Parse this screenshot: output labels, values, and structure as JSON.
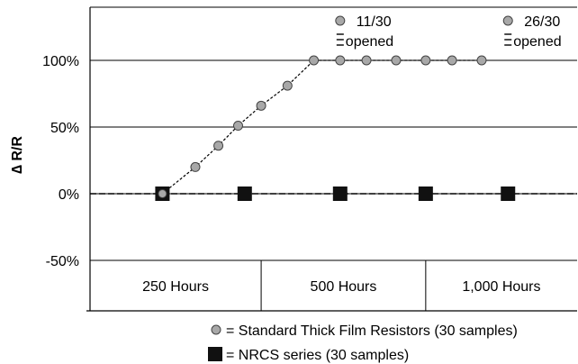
{
  "chart_data": {
    "type": "line",
    "ylabel": "∆ R/R",
    "ylim": [
      -85,
      140
    ],
    "y_ticks": [
      {
        "value": 100,
        "label": "100%"
      },
      {
        "value": 50,
        "label": "50%"
      },
      {
        "value": 0,
        "label": "0%"
      },
      {
        "value": -50,
        "label": "-50%"
      }
    ],
    "x_bands": [
      {
        "label": "250 Hours",
        "from": 0,
        "to": 5.2
      },
      {
        "label": "500 Hours",
        "from": 5.2,
        "to": 10.2
      },
      {
        "label": "1,000 Hours",
        "from": 10.2,
        "to": 14.8
      }
    ],
    "series": [
      {
        "name": "Standard Thick Film Resistors (30 samples)",
        "marker": "circle",
        "color": "#a8a8a8",
        "x": [
          2.2,
          3.2,
          3.9,
          4.5,
          5.2,
          6.0,
          6.8,
          7.6,
          8.4,
          9.3,
          10.2,
          11.0,
          11.9
        ],
        "y": [
          0,
          20,
          36,
          51,
          66,
          81,
          100,
          100,
          100,
          100,
          100,
          100,
          100
        ]
      },
      {
        "name": "NRCS series (30 samples)",
        "marker": "square",
        "color": "#111111",
        "x": [
          2.2,
          4.7,
          7.6,
          10.2,
          12.7
        ],
        "y": [
          0,
          0,
          0,
          0,
          0
        ]
      }
    ],
    "annotations": [
      {
        "x": 7.6,
        "count": "11/30",
        "text": "opened"
      },
      {
        "x": 12.7,
        "count": "26/30",
        "text": "opened"
      }
    ],
    "legend": [
      {
        "marker": "circle",
        "label": "= Standard Thick Film Resistors (30 samples)"
      },
      {
        "marker": "square",
        "label": "= NRCS series (30 samples)"
      }
    ],
    "legend_position": "bottom-center"
  }
}
